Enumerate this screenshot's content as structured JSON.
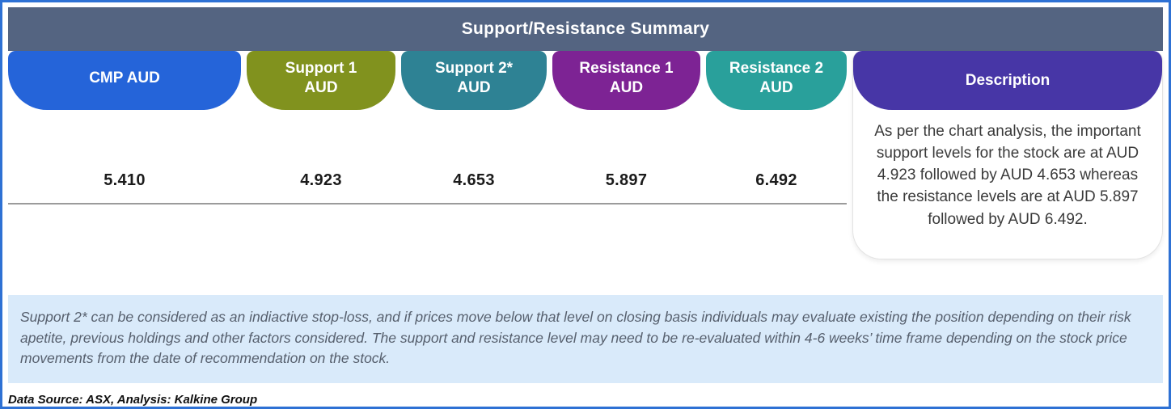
{
  "title": "Support/Resistance Summary",
  "table": {
    "columns": [
      {
        "header": "CMP AUD",
        "value": "5.410",
        "color": "#2564d9"
      },
      {
        "header": "Support 1\nAUD",
        "value": "4.923",
        "color": "#81921e"
      },
      {
        "header": "Support 2*\nAUD",
        "value": "4.653",
        "color": "#2e8294"
      },
      {
        "header": "Resistance 1\nAUD",
        "value": "5.897",
        "color": "#7d2394"
      },
      {
        "header": "Resistance 2\nAUD",
        "value": "6.492",
        "color": "#29a09b"
      }
    ],
    "description_header": "Description",
    "description_text": "As per the chart analysis, the important support levels for the stock are at AUD 4.923 followed by AUD 4.653 whereas the resistance levels are at AUD 5.897 followed by AUD 6.492."
  },
  "footnote": "Support 2* can be considered as an indiactive stop-loss, and if prices move below that level on closing basis individuals may evaluate existing the position depending on their risk apetite, previous holdings and other factors considered. The support and resistance level may need to be re-evaluated within 4-6 weeks’ time frame depending on the stock price movements from  the date of recommendation on the stock.",
  "data_source": "Data Source: ASX, Analysis: Kalkine Group",
  "colors": {
    "frame_border": "#2e71d4",
    "title_bar": "#546481",
    "cmp_pill": "#2564d9",
    "support1_pill": "#81921e",
    "support2_pill": "#2e8294",
    "resistance1_pill": "#7d2394",
    "resistance2_pill": "#29a09b",
    "description_pill": "#4736a6",
    "disclaimer_bg": "#d9eafa"
  }
}
